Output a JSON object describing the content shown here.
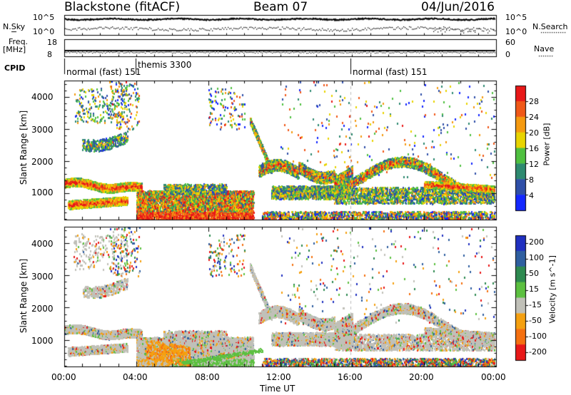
{
  "header": {
    "radar": "Blackstone (fitACF)",
    "beam": "Beam 07",
    "date": "04/Jun/2016"
  },
  "strip_labels": {
    "nsky": "N.Sky",
    "nsearch": "N.Search",
    "freq": "Freq.",
    "freq_unit": "[MHz]",
    "nave": "Nave",
    "cpid": "CPID"
  },
  "strip_ticks": {
    "noise_left": [
      "10^5",
      "10^0"
    ],
    "noise_right": [
      "10^5",
      "10^0"
    ],
    "freq_left": [
      "18",
      "8"
    ],
    "freq_right": [
      "60",
      "0"
    ]
  },
  "cpid_segments": [
    {
      "label": "normal (fast) 151",
      "start_h": 0
    },
    {
      "label": "themis 3300",
      "start_h": 4
    },
    {
      "label": "normal (fast) 151",
      "start_h": 16
    }
  ],
  "chart_data": [
    {
      "type": "heatmap",
      "quantity": "Power",
      "xlabel": "Time UT",
      "ylabel": "Slant Range [km]",
      "colorbar_label": "Power [dB]",
      "xlim": [
        0,
        24
      ],
      "ylim": [
        180,
        4500
      ],
      "x_ticks": [
        "00:00",
        "04:00",
        "08:00",
        "12:00",
        "16:00",
        "20:00",
        "00:00"
      ],
      "y_ticks": [
        1000,
        2000,
        3000,
        4000
      ],
      "colorbar_ticks": [
        4,
        8,
        12,
        16,
        20,
        24,
        28
      ],
      "colorbar_range": [
        0,
        32
      ],
      "colors": [
        "#1428ff",
        "#2f4fa8",
        "#2e8a70",
        "#4fc040",
        "#e8d400",
        "#f59a10",
        "#f05818",
        "#e81818"
      ]
    },
    {
      "type": "heatmap",
      "quantity": "Velocity",
      "xlabel": "Time UT",
      "ylabel": "Slant Range [km]",
      "colorbar_label": "Velocity [m s^-1]",
      "xlim": [
        0,
        24
      ],
      "ylim": [
        180,
        4500
      ],
      "x_ticks": [
        "00:00",
        "04:00",
        "08:00",
        "12:00",
        "16:00",
        "20:00",
        "00:00"
      ],
      "y_ticks": [
        1000,
        2000,
        3000,
        4000
      ],
      "colorbar_ticks": [
        200,
        100,
        50,
        15,
        -15,
        -50,
        -100,
        -200
      ],
      "colors": [
        "#2030c0",
        "#2f5fa0",
        "#2e8a50",
        "#5cc040",
        "#c0c0b8",
        "#f5a010",
        "#f57010",
        "#e81818"
      ]
    }
  ],
  "xlabel": "Time UT",
  "ylabel": "Slant Range [km]"
}
